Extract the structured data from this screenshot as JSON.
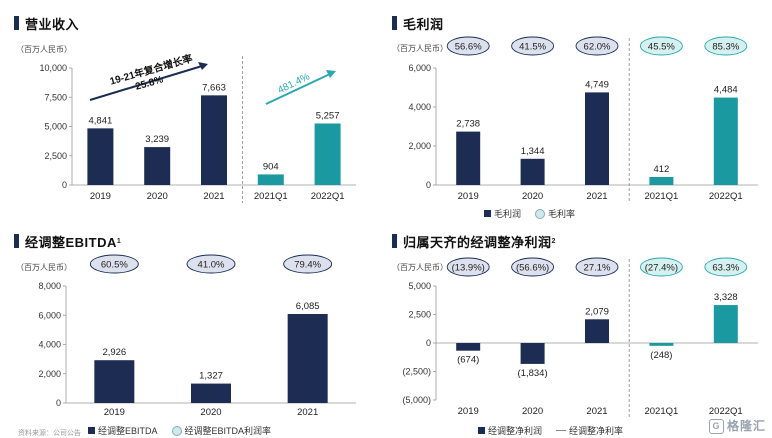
{
  "colors": {
    "navy": "#1c2c52",
    "teal": "#1a9aa0",
    "ellipse_navy_fill": "#dde1ee",
    "ellipse_teal_fill": "#d4f0ef",
    "arrow_navy": "#1c2c52",
    "arrow_teal": "#2aa8b0"
  },
  "panels": {
    "revenue": {
      "title": "营业收入",
      "unit": "（百万人民币）",
      "annotation_cagr_label": "19-21年复合增长率",
      "annotation_cagr_value": "25.8%",
      "annotation_growth": "481.4%"
    },
    "gross_profit": {
      "title": "毛利润",
      "unit": "（百万人民币）",
      "legend_bar": "毛利润",
      "legend_circle": "毛利率"
    },
    "adj_ebitda": {
      "title": "经调整EBITDA",
      "title_sup": "1",
      "unit": "（百万人民币）",
      "legend_bar": "经调整EBITDA",
      "legend_circle": "经调整EBITDA利润率"
    },
    "adj_net_profit": {
      "title": "归属天齐的经调整净利润",
      "title_sup": "2",
      "unit": "（百万人民币）",
      "legend_bar": "经调整净利润",
      "legend_circle": "经调整净利率"
    }
  },
  "footer_note": "资料来源：公司公告",
  "watermark": "格隆汇",
  "chart_data": [
    {
      "id": "revenue",
      "type": "bar",
      "title": "营业收入",
      "ylabel": "百万人民币",
      "categories": [
        "2019",
        "2020",
        "2021",
        "2021Q1",
        "2022Q1"
      ],
      "values": [
        4841,
        3239,
        7663,
        904,
        5257
      ],
      "value_labels": [
        "4,841",
        "3,239",
        "7,663",
        "904",
        "5,257"
      ],
      "ylim": [
        0,
        10000
      ],
      "yticks": [
        0,
        2500,
        5000,
        7500,
        10000
      ],
      "ytick_labels": [
        "0",
        "2,500",
        "5,000",
        "7,500",
        "10,000"
      ],
      "bar_colors": [
        "navy",
        "navy",
        "navy",
        "teal",
        "teal"
      ],
      "divider_after_index": 2
    },
    {
      "id": "gross_profit",
      "type": "bar",
      "title": "毛利润",
      "ylabel": "百万人民币",
      "categories": [
        "2019",
        "2020",
        "2021",
        "2021Q1",
        "2022Q1"
      ],
      "values": [
        2738,
        1344,
        4749,
        412,
        4484
      ],
      "value_labels": [
        "2,738",
        "1,344",
        "4,749",
        "412",
        "4,484"
      ],
      "margins": [
        "56.6%",
        "41.5%",
        "62.0%",
        "45.5%",
        "85.3%"
      ],
      "ylim": [
        0,
        6000
      ],
      "yticks": [
        0,
        2000,
        4000,
        6000
      ],
      "ytick_labels": [
        "0",
        "2,000",
        "4,000",
        "6,000"
      ],
      "bar_colors": [
        "navy",
        "navy",
        "navy",
        "teal",
        "teal"
      ],
      "divider_after_index": 2
    },
    {
      "id": "adj_ebitda",
      "type": "bar",
      "title": "经调整EBITDA",
      "ylabel": "百万人民币",
      "categories": [
        "2019",
        "2020",
        "2021"
      ],
      "values": [
        2926,
        1327,
        6085
      ],
      "value_labels": [
        "2,926",
        "1,327",
        "6,085"
      ],
      "margins": [
        "60.5%",
        "41.0%",
        "79.4%"
      ],
      "ylim": [
        0,
        8000
      ],
      "yticks": [
        0,
        2000,
        4000,
        6000,
        8000
      ],
      "ytick_labels": [
        "0",
        "2,000",
        "4,000",
        "6,000",
        "8,000"
      ],
      "bar_colors": [
        "navy",
        "navy",
        "navy"
      ],
      "divider_after_index": null
    },
    {
      "id": "adj_net_profit",
      "type": "bar",
      "title": "归属天齐的经调整净利润",
      "ylabel": "百万人民币",
      "categories": [
        "2019",
        "2020",
        "2021",
        "2021Q1",
        "2022Q1"
      ],
      "values": [
        -674,
        -1834,
        2079,
        -248,
        3328
      ],
      "value_labels": [
        "(674)",
        "(1,834)",
        "2,079",
        "(248)",
        "3,328"
      ],
      "margins": [
        "(13.9%)",
        "(56.6%)",
        "27.1%",
        "(27.4%)",
        "63.3%"
      ],
      "ylim": [
        -5000,
        5000
      ],
      "yticks": [
        -5000,
        -2500,
        0,
        2500,
        5000
      ],
      "ytick_labels": [
        "(5,000)",
        "(2,500)",
        "0",
        "2,500",
        "5,000"
      ],
      "bar_colors": [
        "navy",
        "navy",
        "navy",
        "teal",
        "teal"
      ],
      "divider_after_index": 2
    }
  ]
}
